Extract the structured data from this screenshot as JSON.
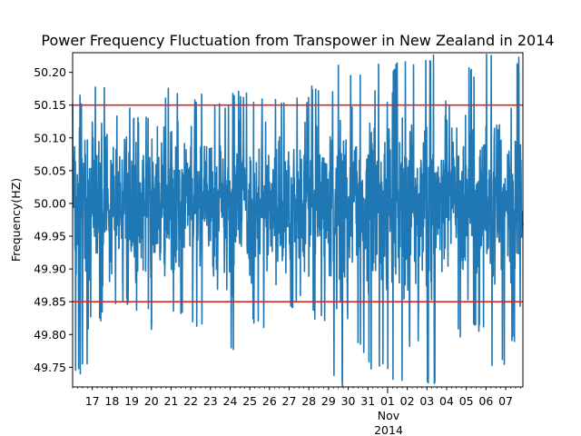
{
  "chart_data": {
    "type": "line",
    "title": "Power Frequency Fluctuation from Transpower in  New Zealand in 2014",
    "xlabel": "",
    "ylabel": "Frequency(HZ)",
    "ylim": [
      49.72,
      50.23
    ],
    "xlim": [
      "2014-10-16",
      "2014-11-07 21:00"
    ],
    "grid": false,
    "y_ticks": [
      "49.75",
      "49.80",
      "49.85",
      "49.90",
      "49.95",
      "50.00",
      "50.05",
      "50.10",
      "50.15",
      "50.20"
    ],
    "x_tick_labels": [
      "17",
      "18",
      "19",
      "20",
      "21",
      "22",
      "23",
      "24",
      "25",
      "26",
      "27",
      "28",
      "29",
      "30",
      "31",
      "01",
      "02",
      "03",
      "04",
      "05",
      "06",
      "07"
    ],
    "x_month_label": "Nov",
    "x_year_label": "2014",
    "reference_lines": [
      {
        "value": 50.15,
        "color": "#d62728"
      },
      {
        "value": 49.85,
        "color": "#d62728"
      }
    ],
    "series": [
      {
        "color": "#1f77b4",
        "daily_range": [
          {
            "date": "2014-10-16",
            "min": 49.74,
            "max": 50.17
          },
          {
            "date": "2014-10-17",
            "min": 49.82,
            "max": 50.18
          },
          {
            "date": "2014-10-18",
            "min": 49.84,
            "max": 50.15
          },
          {
            "date": "2014-10-19",
            "min": 49.83,
            "max": 50.14
          },
          {
            "date": "2014-10-20",
            "min": 49.8,
            "max": 50.18
          },
          {
            "date": "2014-10-21",
            "min": 49.82,
            "max": 50.17
          },
          {
            "date": "2014-10-22",
            "min": 49.81,
            "max": 50.17
          },
          {
            "date": "2014-10-23",
            "min": 49.82,
            "max": 50.16
          },
          {
            "date": "2014-10-24",
            "min": 49.76,
            "max": 50.18
          },
          {
            "date": "2014-10-25",
            "min": 49.81,
            "max": 50.16
          },
          {
            "date": "2014-10-26",
            "min": 49.83,
            "max": 50.17
          },
          {
            "date": "2014-10-27",
            "min": 49.84,
            "max": 50.17
          },
          {
            "date": "2014-10-28",
            "min": 49.82,
            "max": 50.18
          },
          {
            "date": "2014-10-29",
            "min": 49.72,
            "max": 50.23
          },
          {
            "date": "2014-10-30",
            "min": 49.77,
            "max": 50.21
          },
          {
            "date": "2014-10-31",
            "min": 49.74,
            "max": 50.23
          },
          {
            "date": "2014-11-01",
            "min": 49.73,
            "max": 50.22
          },
          {
            "date": "2014-11-02",
            "min": 49.78,
            "max": 50.22
          },
          {
            "date": "2014-11-03",
            "min": 49.72,
            "max": 50.23
          },
          {
            "date": "2014-11-04",
            "min": 49.79,
            "max": 50.23
          },
          {
            "date": "2014-11-05",
            "min": 49.8,
            "max": 50.21
          },
          {
            "date": "2014-11-06",
            "min": 49.75,
            "max": 50.23
          },
          {
            "date": "2014-11-07",
            "min": 49.78,
            "max": 50.23
          }
        ]
      }
    ]
  }
}
